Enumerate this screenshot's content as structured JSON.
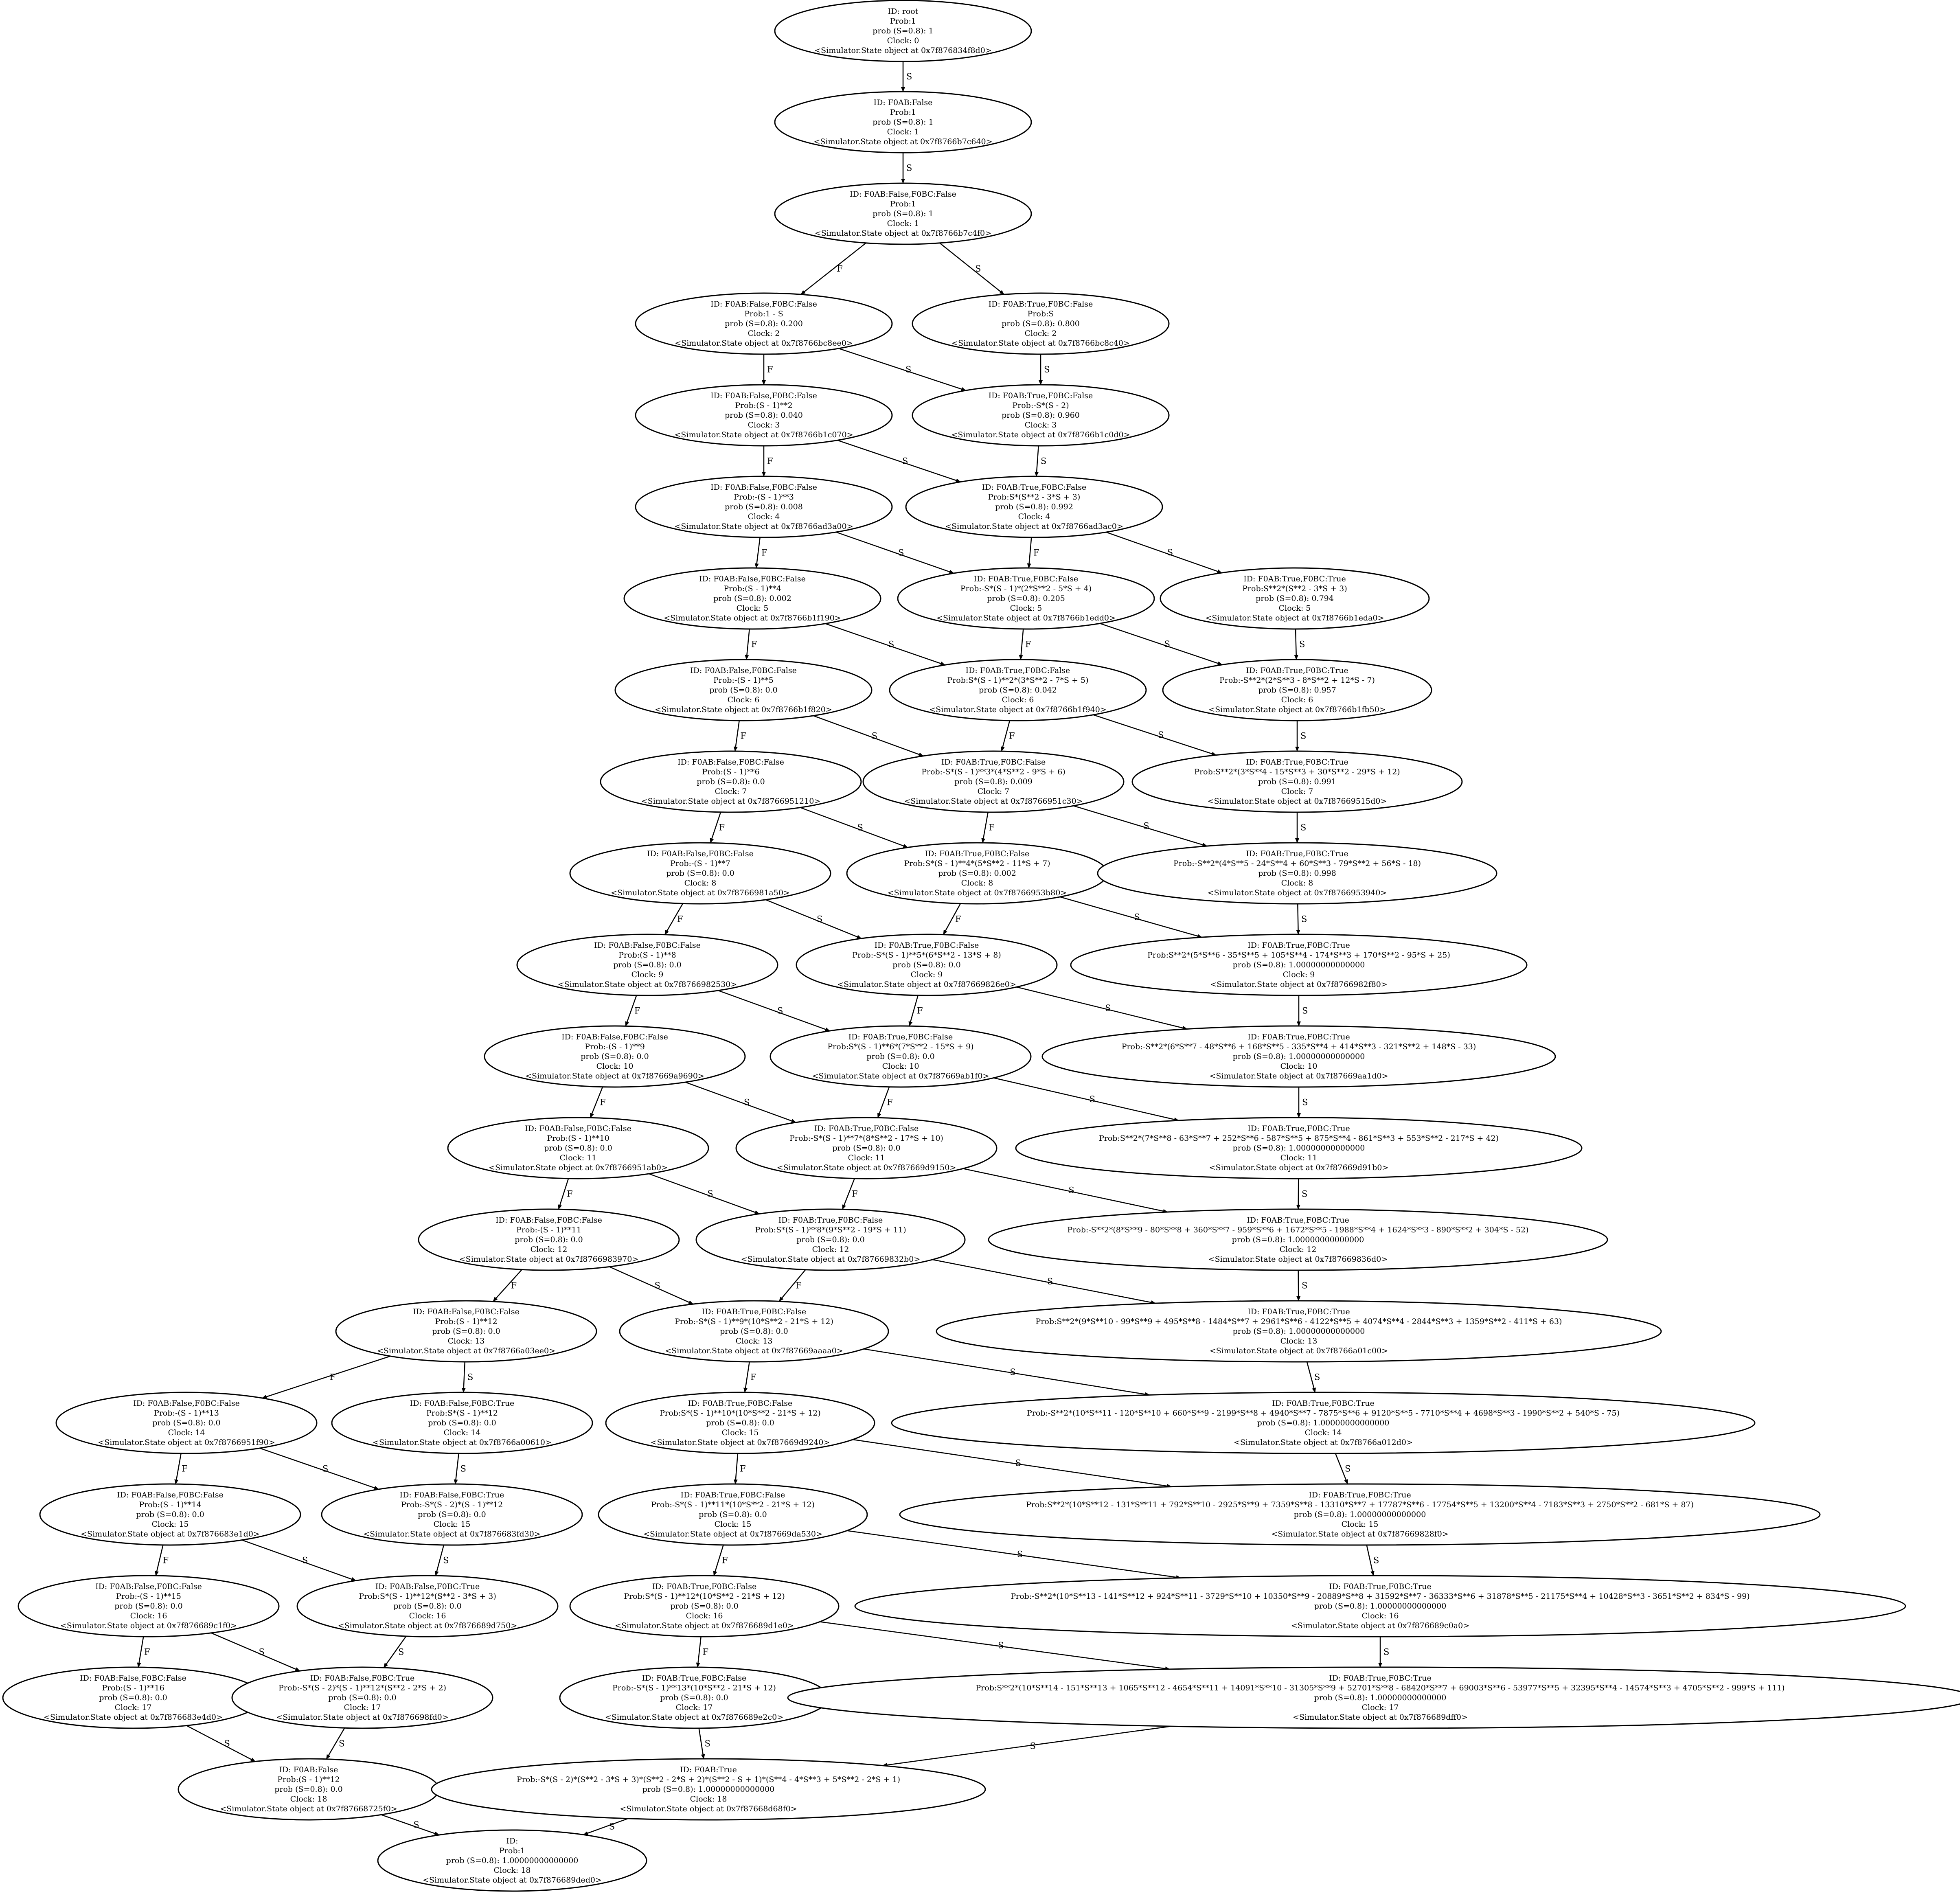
{
  "colors": {
    "stroke": "#000000",
    "background": "#ffffff",
    "text": "#000000"
  },
  "nodes": [
    {
      "id": "root",
      "lines": [
        "ID: root",
        "Prob:1",
        "prob (S=0.8): 1",
        "Clock: 0",
        "<Simulator.State object at 0x7f876834f8d0>"
      ]
    },
    {
      "id": "n1",
      "lines": [
        "ID: F0AB:False",
        "Prob:1",
        "prob (S=0.8): 1",
        "Clock: 1",
        "<Simulator.State object at 0x7f8766b7c640>"
      ]
    },
    {
      "id": "n2",
      "lines": [
        "ID: F0AB:False,F0BC:False",
        "Prob:1",
        "prob (S=0.8): 1",
        "Clock: 1",
        "<Simulator.State object at 0x7f8766b7c4f0>"
      ]
    },
    {
      "id": "a2",
      "lines": [
        "ID: F0AB:False,F0BC:False",
        "Prob:1 - S",
        "prob (S=0.8): 0.200",
        "Clock: 2",
        "<Simulator.State object at 0x7f8766bc8ee0>"
      ]
    },
    {
      "id": "b2",
      "lines": [
        "ID: F0AB:True,F0BC:False",
        "Prob:S",
        "prob (S=0.8): 0.800",
        "Clock: 2",
        "<Simulator.State object at 0x7f8766bc8c40>"
      ]
    },
    {
      "id": "a3",
      "lines": [
        "ID: F0AB:False,F0BC:False",
        "Prob:(S - 1)**2",
        "prob (S=0.8): 0.040",
        "Clock: 3",
        "<Simulator.State object at 0x7f8766b1c070>"
      ]
    },
    {
      "id": "b3",
      "lines": [
        "ID: F0AB:True,F0BC:False",
        "Prob:-S*(S - 2)",
        "prob (S=0.8): 0.960",
        "Clock: 3",
        "<Simulator.State object at 0x7f8766b1c0d0>"
      ]
    },
    {
      "id": "a4",
      "lines": [
        "ID: F0AB:False,F0BC:False",
        "Prob:-(S - 1)**3",
        "prob (S=0.8): 0.008",
        "Clock: 4",
        "<Simulator.State object at 0x7f8766ad3a00>"
      ]
    },
    {
      "id": "b4",
      "lines": [
        "ID: F0AB:True,F0BC:False",
        "Prob:S*(S**2 - 3*S + 3)",
        "prob (S=0.8): 0.992",
        "Clock: 4",
        "<Simulator.State object at 0x7f8766ad3ac0>"
      ]
    },
    {
      "id": "a5",
      "lines": [
        "ID: F0AB:False,F0BC:False",
        "Prob:(S - 1)**4",
        "prob (S=0.8): 0.002",
        "Clock: 5",
        "<Simulator.State object at 0x7f8766b1f190>"
      ]
    },
    {
      "id": "b5",
      "lines": [
        "ID: F0AB:True,F0BC:False",
        "Prob:-S*(S - 1)*(2*S**2 - 5*S + 4)",
        "prob (S=0.8): 0.205",
        "Clock: 5",
        "<Simulator.State object at 0x7f8766b1edd0>"
      ]
    },
    {
      "id": "c5",
      "lines": [
        "ID: F0AB:True,F0BC:True",
        "Prob:S**2*(S**2 - 3*S + 3)",
        "prob (S=0.8): 0.794",
        "Clock: 5",
        "<Simulator.State object at 0x7f8766b1eda0>"
      ]
    },
    {
      "id": "a6",
      "lines": [
        "ID: F0AB:False,F0BC:False",
        "Prob:-(S - 1)**5",
        "prob (S=0.8): 0.0",
        "Clock: 6",
        "<Simulator.State object at 0x7f8766b1f820>"
      ]
    },
    {
      "id": "b6",
      "lines": [
        "ID: F0AB:True,F0BC:False",
        "Prob:S*(S - 1)**2*(3*S**2 - 7*S + 5)",
        "prob (S=0.8): 0.042",
        "Clock: 6",
        "<Simulator.State object at 0x7f8766b1f940>"
      ]
    },
    {
      "id": "c6",
      "lines": [
        "ID: F0AB:True,F0BC:True",
        "Prob:-S**2*(2*S**3 - 8*S**2 + 12*S - 7)",
        "prob (S=0.8): 0.957",
        "Clock: 6",
        "<Simulator.State object at 0x7f8766b1fb50>"
      ]
    },
    {
      "id": "a7",
      "lines": [
        "ID: F0AB:False,F0BC:False",
        "Prob:(S - 1)**6",
        "prob (S=0.8): 0.0",
        "Clock: 7",
        "<Simulator.State object at 0x7f8766951210>"
      ]
    },
    {
      "id": "b7",
      "lines": [
        "ID: F0AB:True,F0BC:False",
        "Prob:-S*(S - 1)**3*(4*S**2 - 9*S + 6)",
        "prob (S=0.8): 0.009",
        "Clock: 7",
        "<Simulator.State object at 0x7f8766951c30>"
      ]
    },
    {
      "id": "c7",
      "lines": [
        "ID: F0AB:True,F0BC:True",
        "Prob:S**2*(3*S**4 - 15*S**3 + 30*S**2 - 29*S + 12)",
        "prob (S=0.8): 0.991",
        "Clock: 7",
        "<Simulator.State object at 0x7f87669515d0>"
      ]
    },
    {
      "id": "a8",
      "lines": [
        "ID: F0AB:False,F0BC:False",
        "Prob:-(S - 1)**7",
        "prob (S=0.8): 0.0",
        "Clock: 8",
        "<Simulator.State object at 0x7f8766981a50>"
      ]
    },
    {
      "id": "b8",
      "lines": [
        "ID: F0AB:True,F0BC:False",
        "Prob:S*(S - 1)**4*(5*S**2 - 11*S + 7)",
        "prob (S=0.8): 0.002",
        "Clock: 8",
        "<Simulator.State object at 0x7f8766953b80>"
      ]
    },
    {
      "id": "c8",
      "lines": [
        "ID: F0AB:True,F0BC:True",
        "Prob:-S**2*(4*S**5 - 24*S**4 + 60*S**3 - 79*S**2 + 56*S - 18)",
        "prob (S=0.8): 0.998",
        "Clock: 8",
        "<Simulator.State object at 0x7f8766953940>"
      ]
    },
    {
      "id": "a9",
      "lines": [
        "ID: F0AB:False,F0BC:False",
        "Prob:(S - 1)**8",
        "prob (S=0.8): 0.0",
        "Clock: 9",
        "<Simulator.State object at 0x7f8766982530>"
      ]
    },
    {
      "id": "b9",
      "lines": [
        "ID: F0AB:True,F0BC:False",
        "Prob:-S*(S - 1)**5*(6*S**2 - 13*S + 8)",
        "prob (S=0.8): 0.0",
        "Clock: 9",
        "<Simulator.State object at 0x7f87669826e0>"
      ]
    },
    {
      "id": "c9",
      "lines": [
        "ID: F0AB:True,F0BC:True",
        "Prob:S**2*(5*S**6 - 35*S**5 + 105*S**4 - 174*S**3 + 170*S**2 - 95*S + 25)",
        "prob (S=0.8): 1.00000000000000",
        "Clock: 9",
        "<Simulator.State object at 0x7f8766982f80>"
      ]
    },
    {
      "id": "a10",
      "lines": [
        "ID: F0AB:False,F0BC:False",
        "Prob:-(S - 1)**9",
        "prob (S=0.8): 0.0",
        "Clock: 10",
        "<Simulator.State object at 0x7f87669a9690>"
      ]
    },
    {
      "id": "b10",
      "lines": [
        "ID: F0AB:True,F0BC:False",
        "Prob:S*(S - 1)**6*(7*S**2 - 15*S + 9)",
        "prob (S=0.8): 0.0",
        "Clock: 10",
        "<Simulator.State object at 0x7f87669ab1f0>"
      ]
    },
    {
      "id": "c10",
      "lines": [
        "ID: F0AB:True,F0BC:True",
        "Prob:-S**2*(6*S**7 - 48*S**6 + 168*S**5 - 335*S**4 + 414*S**3 - 321*S**2 + 148*S - 33)",
        "prob (S=0.8): 1.00000000000000",
        "Clock: 10",
        "<Simulator.State object at 0x7f87669aa1d0>"
      ]
    },
    {
      "id": "a11",
      "lines": [
        "ID: F0AB:False,F0BC:False",
        "Prob:(S - 1)**10",
        "prob (S=0.8): 0.0",
        "Clock: 11",
        "<Simulator.State object at 0x7f8766951ab0>"
      ]
    },
    {
      "id": "b11",
      "lines": [
        "ID: F0AB:True,F0BC:False",
        "Prob:-S*(S - 1)**7*(8*S**2 - 17*S + 10)",
        "prob (S=0.8): 0.0",
        "Clock: 11",
        "<Simulator.State object at 0x7f87669d9150>"
      ]
    },
    {
      "id": "c11",
      "lines": [
        "ID: F0AB:True,F0BC:True",
        "Prob:S**2*(7*S**8 - 63*S**7 + 252*S**6 - 587*S**5 + 875*S**4 - 861*S**3 + 553*S**2 - 217*S + 42)",
        "prob (S=0.8): 1.00000000000000",
        "Clock: 11",
        "<Simulator.State object at 0x7f87669d91b0>"
      ]
    },
    {
      "id": "a12",
      "lines": [
        "ID: F0AB:False,F0BC:False",
        "Prob:-(S - 1)**11",
        "prob (S=0.8): 0.0",
        "Clock: 12",
        "<Simulator.State object at 0x7f8766983970>"
      ]
    },
    {
      "id": "b12",
      "lines": [
        "ID: F0AB:True,F0BC:False",
        "Prob:S*(S - 1)**8*(9*S**2 - 19*S + 11)",
        "prob (S=0.8): 0.0",
        "Clock: 12",
        "<Simulator.State object at 0x7f87669832b0>"
      ]
    },
    {
      "id": "c12",
      "lines": [
        "ID: F0AB:True,F0BC:True",
        "Prob:-S**2*(8*S**9 - 80*S**8 + 360*S**7 - 959*S**6 + 1672*S**5 - 1988*S**4 + 1624*S**3 - 890*S**2 + 304*S - 52)",
        "prob (S=0.8): 1.00000000000000",
        "Clock: 12",
        "<Simulator.State object at 0x7f87669836d0>"
      ]
    },
    {
      "id": "a13",
      "lines": [
        "ID: F0AB:False,F0BC:False",
        "Prob:(S - 1)**12",
        "prob (S=0.8): 0.0",
        "Clock: 13",
        "<Simulator.State object at 0x7f8766a03ee0>"
      ]
    },
    {
      "id": "b13",
      "lines": [
        "ID: F0AB:True,F0BC:False",
        "Prob:-S*(S - 1)**9*(10*S**2 - 21*S + 12)",
        "prob (S=0.8): 0.0",
        "Clock: 13",
        "<Simulator.State object at 0x7f87669aaaa0>"
      ]
    },
    {
      "id": "c13",
      "lines": [
        "ID: F0AB:True,F0BC:True",
        "Prob:S**2*(9*S**10 - 99*S**9 + 495*S**8 - 1484*S**7 + 2961*S**6 - 4122*S**5 + 4074*S**4 - 2844*S**3 + 1359*S**2 - 411*S + 63)",
        "prob (S=0.8): 1.00000000000000",
        "Clock: 13",
        "<Simulator.State object at 0x7f8766a01c00>"
      ]
    },
    {
      "id": "a14",
      "lines": [
        "ID: F0AB:False,F0BC:False",
        "Prob:-(S - 1)**13",
        "prob (S=0.8): 0.0",
        "Clock: 14",
        "<Simulator.State object at 0x7f8766951f90>"
      ]
    },
    {
      "id": "d14",
      "lines": [
        "ID: F0AB:False,F0BC:True",
        "Prob:S*(S - 1)**12",
        "prob (S=0.8): 0.0",
        "Clock: 14",
        "<Simulator.State object at 0x7f8766a00610>"
      ]
    },
    {
      "id": "b14",
      "lines": [
        "ID: F0AB:True,F0BC:False",
        "Prob:S*(S - 1)**10*(10*S**2 - 21*S + 12)",
        "prob (S=0.8): 0.0",
        "Clock: 15",
        "<Simulator.State object at 0x7f87669d9240>"
      ]
    },
    {
      "id": "c14",
      "lines": [
        "ID: F0AB:True,F0BC:True",
        "Prob:-S**2*(10*S**11 - 120*S**10 + 660*S**9 - 2199*S**8 + 4940*S**7 - 7875*S**6 + 9120*S**5 - 7710*S**4 + 4698*S**3 - 1990*S**2 + 540*S - 75)",
        "prob (S=0.8): 1.00000000000000",
        "Clock: 14",
        "<Simulator.State object at 0x7f8766a012d0>"
      ]
    },
    {
      "id": "a15",
      "lines": [
        "ID: F0AB:False,F0BC:False",
        "Prob:(S - 1)**14",
        "prob (S=0.8): 0.0",
        "Clock: 15",
        "<Simulator.State object at 0x7f876683e1d0>"
      ]
    },
    {
      "id": "d15",
      "lines": [
        "ID: F0AB:False,F0BC:True",
        "Prob:-S*(S - 2)*(S - 1)**12",
        "prob (S=0.8): 0.0",
        "Clock: 15",
        "<Simulator.State object at 0x7f876683fd30>"
      ]
    },
    {
      "id": "b15",
      "lines": [
        "ID: F0AB:True,F0BC:False",
        "Prob:-S*(S - 1)**11*(10*S**2 - 21*S + 12)",
        "prob (S=0.8): 0.0",
        "Clock: 15",
        "<Simulator.State object at 0x7f87669da530>"
      ]
    },
    {
      "id": "c15",
      "lines": [
        "ID: F0AB:True,F0BC:True",
        "Prob:S**2*(10*S**12 - 131*S**11 + 792*S**10 - 2925*S**9 + 7359*S**8 - 13310*S**7 + 17787*S**6 - 17754*S**5 + 13200*S**4 - 7183*S**3 + 2750*S**2 - 681*S + 87)",
        "prob (S=0.8): 1.00000000000000",
        "Clock: 15",
        "<Simulator.State object at 0x7f87669828f0>"
      ]
    },
    {
      "id": "a16",
      "lines": [
        "ID: F0AB:False,F0BC:False",
        "Prob:-(S - 1)**15",
        "prob (S=0.8): 0.0",
        "Clock: 16",
        "<Simulator.State object at 0x7f876689c1f0>"
      ]
    },
    {
      "id": "d16",
      "lines": [
        "ID: F0AB:False,F0BC:True",
        "Prob:S*(S - 1)**12*(S**2 - 3*S + 3)",
        "prob (S=0.8): 0.0",
        "Clock: 16",
        "<Simulator.State object at 0x7f876689d750>"
      ]
    },
    {
      "id": "b16",
      "lines": [
        "ID: F0AB:True,F0BC:False",
        "Prob:S*(S - 1)**12*(10*S**2 - 21*S + 12)",
        "prob (S=0.8): 0.0",
        "Clock: 16",
        "<Simulator.State object at 0x7f876689d1e0>"
      ]
    },
    {
      "id": "c16",
      "lines": [
        "ID: F0AB:True,F0BC:True",
        "Prob:-S**2*(10*S**13 - 141*S**12 + 924*S**11 - 3729*S**10 + 10350*S**9 - 20889*S**8 + 31592*S**7 - 36333*S**6 + 31878*S**5 - 21175*S**4 + 10428*S**3 - 3651*S**2 + 834*S - 99)",
        "prob (S=0.8): 1.00000000000000",
        "Clock: 16",
        "<Simulator.State object at 0x7f876689c0a0>"
      ]
    },
    {
      "id": "a17",
      "lines": [
        "ID: F0AB:False,F0BC:False",
        "Prob:(S - 1)**16",
        "prob (S=0.8): 0.0",
        "Clock: 17",
        "<Simulator.State object at 0x7f876683e4d0>"
      ]
    },
    {
      "id": "d17",
      "lines": [
        "ID: F0AB:False,F0BC:True",
        "Prob:-S*(S - 2)*(S - 1)**12*(S**2 - 2*S + 2)",
        "prob (S=0.8): 0.0",
        "Clock: 17",
        "<Simulator.State object at 0x7f876698fd0>"
      ]
    },
    {
      "id": "b17",
      "lines": [
        "ID: F0AB:True,F0BC:False",
        "Prob:-S*(S - 1)**13*(10*S**2 - 21*S + 12)",
        "prob (S=0.8): 0.0",
        "Clock: 17",
        "<Simulator.State object at 0x7f876689e2c0>"
      ]
    },
    {
      "id": "c17",
      "lines": [
        "ID: F0AB:True,F0BC:True",
        "Prob:S**2*(10*S**14 - 151*S**13 + 1065*S**12 - 4654*S**11 + 14091*S**10 - 31305*S**9 + 52701*S**8 - 68420*S**7 + 69003*S**6 - 53977*S**5 + 32395*S**4 - 14574*S**3 + 4705*S**2 - 999*S + 111)",
        "prob (S=0.8): 1.00000000000000",
        "Clock: 17",
        "<Simulator.State object at 0x7f876689dff0>"
      ]
    },
    {
      "id": "e18",
      "lines": [
        "ID: F0AB:False",
        "Prob:(S - 1)**12",
        "prob (S=0.8): 0.0",
        "Clock: 18",
        "<Simulator.State object at 0x7f87668725f0>"
      ]
    },
    {
      "id": "f18",
      "lines": [
        "ID: F0AB:True",
        "Prob:-S*(S - 2)*(S**2 - 3*S + 3)*(S**2 - 2*S + 2)*(S**2 - S + 1)*(S**4 - 4*S**3 + 5*S**2 - 2*S + 1)",
        "prob (S=0.8): 1.00000000000000",
        "Clock: 18",
        "<Simulator.State object at 0x7f87668d68f0>"
      ]
    },
    {
      "id": "end",
      "lines": [
        "ID:",
        "Prob:1",
        "prob (S=0.8): 1.00000000000000",
        "Clock: 18",
        "<Simulator.State object at 0x7f876689ded0>"
      ]
    }
  ],
  "edges": [
    {
      "from": "root",
      "to": "n1",
      "label": "S"
    },
    {
      "from": "n1",
      "to": "n2",
      "label": "S"
    },
    {
      "from": "n2",
      "to": "a2",
      "label": "F"
    },
    {
      "from": "n2",
      "to": "b2",
      "label": "S"
    },
    {
      "from": "a2",
      "to": "a3",
      "label": "F"
    },
    {
      "from": "a2",
      "to": "b3",
      "label": "S"
    },
    {
      "from": "b2",
      "to": "b3",
      "label": "S"
    },
    {
      "from": "a3",
      "to": "a4",
      "label": "F"
    },
    {
      "from": "a3",
      "to": "b4",
      "label": "S"
    },
    {
      "from": "b3",
      "to": "b4",
      "label": "S"
    },
    {
      "from": "a4",
      "to": "a5",
      "label": "F"
    },
    {
      "from": "a4",
      "to": "b5",
      "label": "S"
    },
    {
      "from": "b4",
      "to": "b5",
      "label": "F"
    },
    {
      "from": "b4",
      "to": "c5",
      "label": "S"
    },
    {
      "from": "a5",
      "to": "a6",
      "label": "F"
    },
    {
      "from": "a5",
      "to": "b6",
      "label": "S"
    },
    {
      "from": "b5",
      "to": "b6",
      "label": "F"
    },
    {
      "from": "b5",
      "to": "c6",
      "label": "S"
    },
    {
      "from": "c5",
      "to": "c6",
      "label": "S"
    },
    {
      "from": "a6",
      "to": "a7",
      "label": "F"
    },
    {
      "from": "a6",
      "to": "b7",
      "label": "S"
    },
    {
      "from": "b6",
      "to": "b7",
      "label": "F"
    },
    {
      "from": "b6",
      "to": "c7",
      "label": "S"
    },
    {
      "from": "c6",
      "to": "c7",
      "label": "S"
    },
    {
      "from": "a7",
      "to": "a8",
      "label": "F"
    },
    {
      "from": "a7",
      "to": "b8",
      "label": "S"
    },
    {
      "from": "b7",
      "to": "b8",
      "label": "F"
    },
    {
      "from": "b7",
      "to": "c8",
      "label": "S"
    },
    {
      "from": "c7",
      "to": "c8",
      "label": "S"
    },
    {
      "from": "a8",
      "to": "a9",
      "label": "F"
    },
    {
      "from": "a8",
      "to": "b9",
      "label": "S"
    },
    {
      "from": "b8",
      "to": "b9",
      "label": "F"
    },
    {
      "from": "b8",
      "to": "c9",
      "label": "S"
    },
    {
      "from": "c8",
      "to": "c9",
      "label": "S"
    },
    {
      "from": "a9",
      "to": "a10",
      "label": "F"
    },
    {
      "from": "a9",
      "to": "b10",
      "label": "S"
    },
    {
      "from": "b9",
      "to": "b10",
      "label": "F"
    },
    {
      "from": "b9",
      "to": "c10",
      "label": "S"
    },
    {
      "from": "c9",
      "to": "c10",
      "label": "S"
    },
    {
      "from": "a10",
      "to": "a11",
      "label": "F"
    },
    {
      "from": "a10",
      "to": "b11",
      "label": "S"
    },
    {
      "from": "b10",
      "to": "b11",
      "label": "F"
    },
    {
      "from": "b10",
      "to": "c11",
      "label": "S"
    },
    {
      "from": "c10",
      "to": "c11",
      "label": "S"
    },
    {
      "from": "a11",
      "to": "a12",
      "label": "F"
    },
    {
      "from": "a11",
      "to": "b12",
      "label": "S"
    },
    {
      "from": "b11",
      "to": "b12",
      "label": "F"
    },
    {
      "from": "b11",
      "to": "c12",
      "label": "S"
    },
    {
      "from": "c11",
      "to": "c12",
      "label": "S"
    },
    {
      "from": "a12",
      "to": "a13",
      "label": "F"
    },
    {
      "from": "a12",
      "to": "b13",
      "label": "S"
    },
    {
      "from": "b12",
      "to": "b13",
      "label": "F"
    },
    {
      "from": "b12",
      "to": "c13",
      "label": "S"
    },
    {
      "from": "c12",
      "to": "c13",
      "label": "S"
    },
    {
      "from": "a13",
      "to": "a14",
      "label": "F"
    },
    {
      "from": "a13",
      "to": "d14",
      "label": "S"
    },
    {
      "from": "b13",
      "to": "b14",
      "label": "F"
    },
    {
      "from": "b13",
      "to": "c14",
      "label": "S"
    },
    {
      "from": "c13",
      "to": "c14",
      "label": "S"
    },
    {
      "from": "a14",
      "to": "a15",
      "label": "F"
    },
    {
      "from": "a14",
      "to": "d15",
      "label": "S"
    },
    {
      "from": "d14",
      "to": "d15",
      "label": "S"
    },
    {
      "from": "b14",
      "to": "b15",
      "label": "F"
    },
    {
      "from": "b14",
      "to": "c15",
      "label": "S"
    },
    {
      "from": "c14",
      "to": "c15",
      "label": "S"
    },
    {
      "from": "a15",
      "to": "a16",
      "label": "F"
    },
    {
      "from": "a15",
      "to": "d16",
      "label": "S"
    },
    {
      "from": "d15",
      "to": "d16",
      "label": "S"
    },
    {
      "from": "b15",
      "to": "b16",
      "label": "F"
    },
    {
      "from": "b15",
      "to": "c16",
      "label": "S"
    },
    {
      "from": "c15",
      "to": "c16",
      "label": "S"
    },
    {
      "from": "a16",
      "to": "a17",
      "label": "F"
    },
    {
      "from": "a16",
      "to": "d17",
      "label": "S"
    },
    {
      "from": "d16",
      "to": "d17",
      "label": "S"
    },
    {
      "from": "b16",
      "to": "b17",
      "label": "F"
    },
    {
      "from": "b16",
      "to": "c17",
      "label": "S"
    },
    {
      "from": "c16",
      "to": "c17",
      "label": "S"
    },
    {
      "from": "a17",
      "to": "e18",
      "label": "S"
    },
    {
      "from": "d17",
      "to": "e18",
      "label": "S"
    },
    {
      "from": "b17",
      "to": "f18",
      "label": "S"
    },
    {
      "from": "c17",
      "to": "f18",
      "label": "S"
    },
    {
      "from": "e18",
      "to": "end",
      "label": "S"
    },
    {
      "from": "f18",
      "to": "end",
      "label": "S"
    }
  ]
}
